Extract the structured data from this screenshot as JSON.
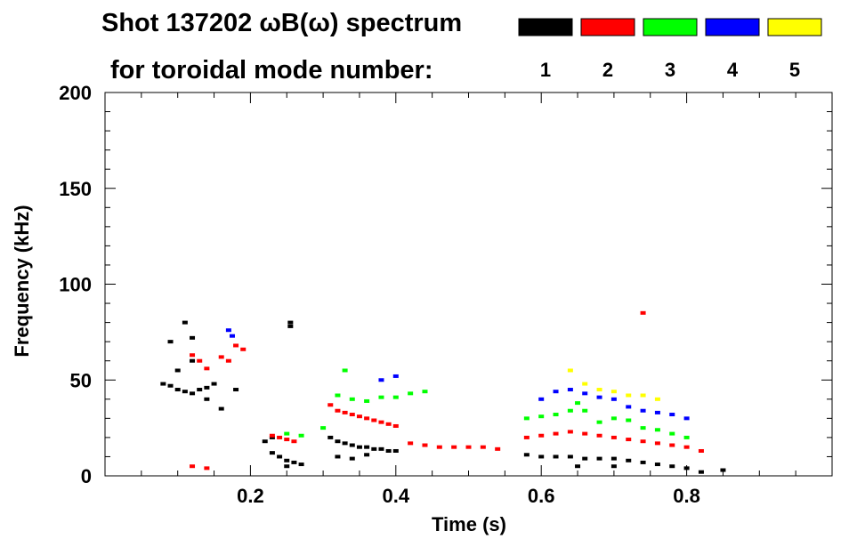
{
  "chart_data": {
    "type": "scatter",
    "title_line1": "Shot 137202 ωB(ω) spectrum",
    "title_line2": "for toroidal mode number:",
    "xlabel": "Time (s)",
    "ylabel": "Frequency (kHz)",
    "xlim": [
      0.0,
      1.0
    ],
    "ylim": [
      0,
      200
    ],
    "xticks": [
      0.2,
      0.4,
      0.6,
      0.8
    ],
    "xtick_labels": [
      "0.2",
      "0.4",
      "0.6",
      "0.8"
    ],
    "yticks": [
      0,
      50,
      100,
      150,
      200
    ],
    "ytick_labels": [
      "0",
      "50",
      "100",
      "150",
      "200"
    ],
    "legend_placement": "top-right",
    "series": [
      {
        "name": "1",
        "color": "#000000",
        "points": [
          [
            0.08,
            48
          ],
          [
            0.09,
            47
          ],
          [
            0.1,
            45
          ],
          [
            0.11,
            44
          ],
          [
            0.12,
            43
          ],
          [
            0.13,
            45
          ],
          [
            0.14,
            46
          ],
          [
            0.15,
            48
          ],
          [
            0.1,
            55
          ],
          [
            0.12,
            60
          ],
          [
            0.14,
            40
          ],
          [
            0.16,
            35
          ],
          [
            0.18,
            45
          ],
          [
            0.09,
            70
          ],
          [
            0.11,
            80
          ],
          [
            0.12,
            72
          ],
          [
            0.22,
            18
          ],
          [
            0.23,
            12
          ],
          [
            0.24,
            10
          ],
          [
            0.25,
            8
          ],
          [
            0.26,
            7
          ],
          [
            0.27,
            6
          ],
          [
            0.23,
            20
          ],
          [
            0.25,
            5
          ],
          [
            0.255,
            78
          ],
          [
            0.255,
            80
          ],
          [
            0.31,
            20
          ],
          [
            0.32,
            18
          ],
          [
            0.33,
            17
          ],
          [
            0.34,
            16
          ],
          [
            0.35,
            15
          ],
          [
            0.36,
            15
          ],
          [
            0.37,
            14
          ],
          [
            0.38,
            14
          ],
          [
            0.39,
            13
          ],
          [
            0.4,
            13
          ],
          [
            0.32,
            10
          ],
          [
            0.34,
            9
          ],
          [
            0.36,
            11
          ],
          [
            0.58,
            11
          ],
          [
            0.6,
            10
          ],
          [
            0.62,
            10
          ],
          [
            0.64,
            10
          ],
          [
            0.66,
            9
          ],
          [
            0.68,
            9
          ],
          [
            0.7,
            9
          ],
          [
            0.72,
            8
          ],
          [
            0.74,
            7
          ],
          [
            0.76,
            6
          ],
          [
            0.78,
            5
          ],
          [
            0.8,
            4
          ],
          [
            0.82,
            2
          ],
          [
            0.85,
            3
          ],
          [
            0.65,
            5
          ],
          [
            0.7,
            5
          ]
        ]
      },
      {
        "name": "2",
        "color": "#ff0000",
        "points": [
          [
            0.12,
            63
          ],
          [
            0.13,
            60
          ],
          [
            0.14,
            56
          ],
          [
            0.17,
            60
          ],
          [
            0.18,
            68
          ],
          [
            0.19,
            66
          ],
          [
            0.16,
            62
          ],
          [
            0.23,
            21
          ],
          [
            0.24,
            20
          ],
          [
            0.25,
            19
          ],
          [
            0.26,
            18
          ],
          [
            0.14,
            4
          ],
          [
            0.12,
            5
          ],
          [
            0.31,
            37
          ],
          [
            0.32,
            34
          ],
          [
            0.33,
            33
          ],
          [
            0.34,
            32
          ],
          [
            0.35,
            31
          ],
          [
            0.36,
            30
          ],
          [
            0.37,
            29
          ],
          [
            0.38,
            28
          ],
          [
            0.39,
            27
          ],
          [
            0.4,
            26
          ],
          [
            0.42,
            17
          ],
          [
            0.44,
            16
          ],
          [
            0.46,
            15
          ],
          [
            0.48,
            15
          ],
          [
            0.5,
            15
          ],
          [
            0.52,
            15
          ],
          [
            0.54,
            14
          ],
          [
            0.58,
            20
          ],
          [
            0.6,
            21
          ],
          [
            0.62,
            22
          ],
          [
            0.64,
            23
          ],
          [
            0.66,
            22
          ],
          [
            0.68,
            21
          ],
          [
            0.7,
            20
          ],
          [
            0.72,
            19
          ],
          [
            0.74,
            18
          ],
          [
            0.76,
            17
          ],
          [
            0.78,
            16
          ],
          [
            0.8,
            15
          ],
          [
            0.82,
            13
          ],
          [
            0.74,
            85
          ]
        ]
      },
      {
        "name": "3",
        "color": "#00ff00",
        "points": [
          [
            0.32,
            42
          ],
          [
            0.34,
            40
          ],
          [
            0.36,
            39
          ],
          [
            0.38,
            41
          ],
          [
            0.4,
            41
          ],
          [
            0.42,
            43
          ],
          [
            0.44,
            44
          ],
          [
            0.33,
            55
          ],
          [
            0.25,
            22
          ],
          [
            0.27,
            21
          ],
          [
            0.3,
            25
          ],
          [
            0.58,
            30
          ],
          [
            0.6,
            31
          ],
          [
            0.62,
            32
          ],
          [
            0.64,
            34
          ],
          [
            0.66,
            34
          ],
          [
            0.68,
            28
          ],
          [
            0.7,
            30
          ],
          [
            0.72,
            29
          ],
          [
            0.74,
            25
          ],
          [
            0.76,
            24
          ],
          [
            0.78,
            22
          ],
          [
            0.8,
            20
          ],
          [
            0.65,
            38
          ]
        ]
      },
      {
        "name": "4",
        "color": "#0000ff",
        "points": [
          [
            0.17,
            76
          ],
          [
            0.175,
            73
          ],
          [
            0.38,
            50
          ],
          [
            0.4,
            52
          ],
          [
            0.6,
            40
          ],
          [
            0.62,
            44
          ],
          [
            0.64,
            45
          ],
          [
            0.66,
            43
          ],
          [
            0.68,
            41
          ],
          [
            0.7,
            40
          ],
          [
            0.72,
            36
          ],
          [
            0.74,
            34
          ],
          [
            0.76,
            33
          ],
          [
            0.78,
            32
          ],
          [
            0.8,
            30
          ]
        ]
      },
      {
        "name": "5",
        "color": "#ffff00",
        "points": [
          [
            0.64,
            55
          ],
          [
            0.66,
            48
          ],
          [
            0.68,
            45
          ],
          [
            0.7,
            44
          ],
          [
            0.72,
            42
          ],
          [
            0.74,
            42
          ],
          [
            0.76,
            40
          ]
        ]
      }
    ]
  }
}
